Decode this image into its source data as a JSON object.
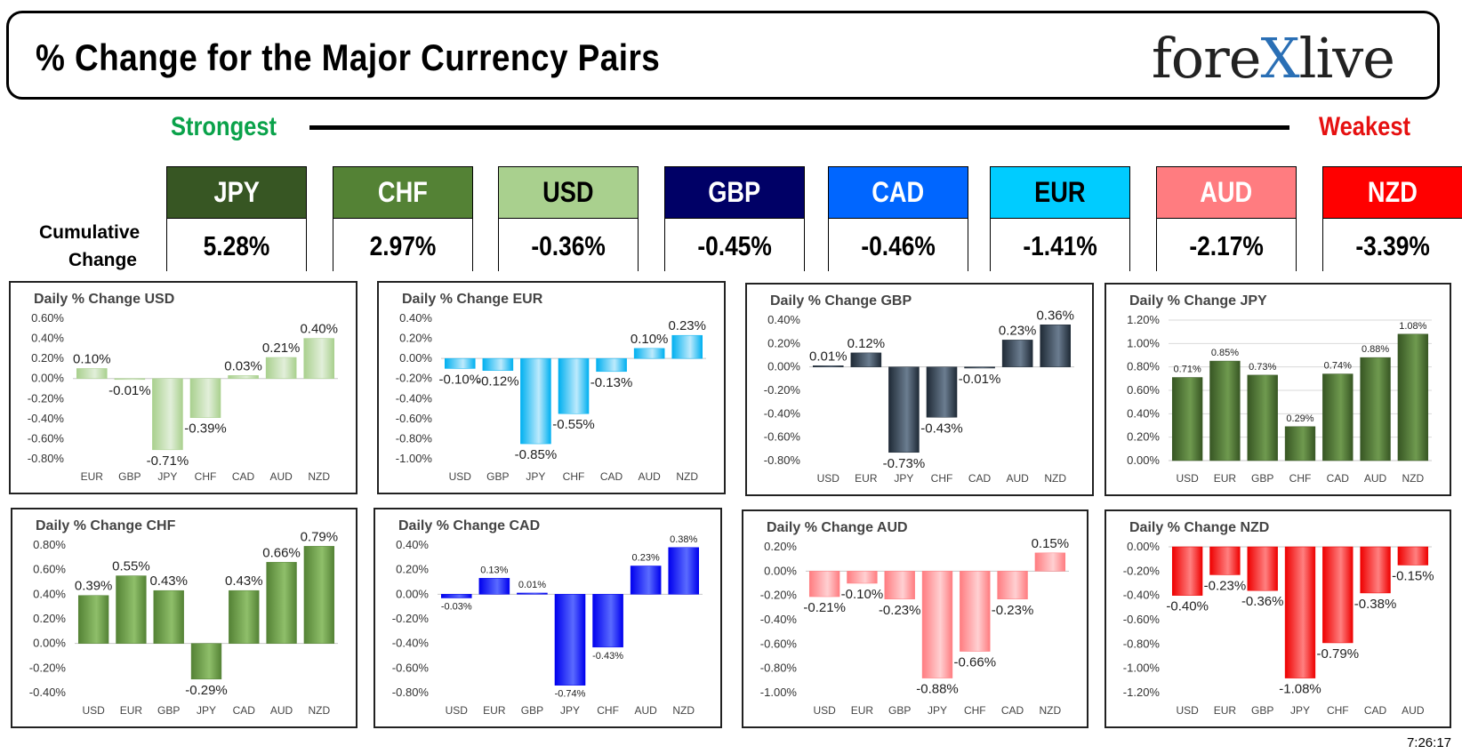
{
  "header": {
    "title": "% Change for the Major Currency Pairs",
    "logo_left": "fore",
    "logo_x": "X",
    "logo_right": "live"
  },
  "strength": {
    "strongest": "Strongest",
    "weakest": "Weakest"
  },
  "cumulative_label_line1": "Cumulative",
  "cumulative_label_line2": "Change",
  "currencies": [
    {
      "name": "JPY",
      "value": "5.28%",
      "color": "#375623",
      "text_color": "#ffffff"
    },
    {
      "name": "CHF",
      "value": "2.97%",
      "color": "#548235",
      "text_color": "#ffffff"
    },
    {
      "name": "USD",
      "value": "-0.36%",
      "color": "#a9d08e",
      "text_color": "#000000"
    },
    {
      "name": "GBP",
      "value": "-0.45%",
      "color": "#000066",
      "text_color": "#ffffff"
    },
    {
      "name": "CAD",
      "value": "-0.46%",
      "color": "#0066ff",
      "text_color": "#ffffff"
    },
    {
      "name": "EUR",
      "value": "-1.41%",
      "color": "#00ccff",
      "text_color": "#000000"
    },
    {
      "name": "AUD",
      "value": "-2.17%",
      "color": "#ff7c80",
      "text_color": "#ffffff"
    },
    {
      "name": "NZD",
      "value": "-3.39%",
      "color": "#ff0000",
      "text_color": "#ffffff"
    }
  ],
  "timestamp": "7:26:17",
  "chart_data": [
    {
      "type": "bar",
      "title": "Daily % Change USD",
      "categories": [
        "EUR",
        "GBP",
        "JPY",
        "CHF",
        "CAD",
        "AUD",
        "NZD"
      ],
      "values": [
        0.1,
        -0.01,
        -0.71,
        -0.39,
        0.03,
        0.21,
        0.4
      ],
      "ylim": [
        -0.8,
        0.6
      ],
      "ticks": [
        0.6,
        0.4,
        0.2,
        0,
        -0.2,
        -0.4,
        -0.6,
        -0.8
      ],
      "decimals": 2,
      "color": "#a9d08e",
      "color_light": "#e2efda",
      "label_size": 15,
      "grid": false
    },
    {
      "type": "bar",
      "title": "Daily % Change EUR",
      "categories": [
        "USD",
        "GBP",
        "JPY",
        "CHF",
        "CAD",
        "AUD",
        "NZD"
      ],
      "values": [
        -0.1,
        -0.12,
        -0.85,
        -0.55,
        -0.13,
        0.1,
        0.23
      ],
      "ylim": [
        -1.0,
        0.4
      ],
      "ticks": [
        0.4,
        0.2,
        0,
        -0.2,
        -0.4,
        -0.6,
        -0.8,
        -1.0
      ],
      "decimals": 2,
      "color": "#00b0f0",
      "color_light": "#bdeafc",
      "label_size": 15,
      "grid": false
    },
    {
      "type": "bar",
      "title": "Daily % Change GBP",
      "categories": [
        "USD",
        "EUR",
        "JPY",
        "CHF",
        "CAD",
        "AUD",
        "NZD"
      ],
      "values": [
        0.01,
        0.12,
        -0.73,
        -0.43,
        -0.01,
        0.23,
        0.36
      ],
      "ylim": [
        -0.8,
        0.4
      ],
      "ticks": [
        0.4,
        0.2,
        0,
        -0.2,
        -0.4,
        -0.6,
        -0.8
      ],
      "decimals": 2,
      "color": "#1f2a36",
      "color_light": "#6b7d90",
      "label_size": 15,
      "grid": false
    },
    {
      "type": "bar",
      "title": "Daily % Change JPY",
      "categories": [
        "USD",
        "EUR",
        "GBP",
        "CHF",
        "CAD",
        "AUD",
        "NZD"
      ],
      "values": [
        0.71,
        0.85,
        0.73,
        0.29,
        0.74,
        0.88,
        1.08
      ],
      "ylim": [
        0,
        1.2
      ],
      "ticks": [
        1.2,
        1.0,
        0.8,
        0.6,
        0.4,
        0.2,
        0
      ],
      "decimals": 2,
      "color": "#375623",
      "color_light": "#6f9a4f",
      "label_size": 11,
      "grid": true
    },
    {
      "type": "bar",
      "title": "Daily % Change CHF",
      "categories": [
        "USD",
        "EUR",
        "GBP",
        "JPY",
        "CAD",
        "AUD",
        "NZD"
      ],
      "values": [
        0.39,
        0.55,
        0.43,
        -0.29,
        0.43,
        0.66,
        0.79
      ],
      "ylim": [
        -0.4,
        0.8
      ],
      "ticks": [
        0.8,
        0.6,
        0.4,
        0.2,
        0,
        -0.2,
        -0.4
      ],
      "decimals": 2,
      "color": "#548235",
      "color_light": "#8fbf6a",
      "label_size": 15,
      "grid": false
    },
    {
      "type": "bar",
      "title": "Daily % Change CAD",
      "categories": [
        "USD",
        "EUR",
        "GBP",
        "JPY",
        "CHF",
        "AUD",
        "NZD"
      ],
      "values": [
        -0.03,
        0.13,
        0.01,
        -0.74,
        -0.43,
        0.23,
        0.38
      ],
      "ylim": [
        -0.8,
        0.4
      ],
      "ticks": [
        0.4,
        0.2,
        0,
        -0.2,
        -0.4,
        -0.6,
        -0.8
      ],
      "decimals": 2,
      "color": "#0000ee",
      "color_light": "#5a6bff",
      "label_size": 11,
      "grid": false
    },
    {
      "type": "bar",
      "title": "Daily % Change AUD",
      "categories": [
        "USD",
        "EUR",
        "GBP",
        "JPY",
        "CHF",
        "CAD",
        "NZD"
      ],
      "values": [
        -0.21,
        -0.1,
        -0.23,
        -0.88,
        -0.66,
        -0.23,
        0.15
      ],
      "ylim": [
        -1.0,
        0.2
      ],
      "ticks": [
        0.2,
        0,
        -0.2,
        -0.4,
        -0.6,
        -0.8,
        -1.0
      ],
      "decimals": 2,
      "color": "#ff7c80",
      "color_light": "#ffd0d2",
      "label_size": 15,
      "grid": false
    },
    {
      "type": "bar",
      "title": "Daily % Change NZD",
      "categories": [
        "USD",
        "EUR",
        "GBP",
        "JPY",
        "CHF",
        "CAD",
        "AUD"
      ],
      "values": [
        -0.4,
        -0.23,
        -0.36,
        -1.08,
        -0.79,
        -0.38,
        -0.15
      ],
      "ylim": [
        -1.2,
        0
      ],
      "ticks": [
        0,
        -0.2,
        -0.4,
        -0.6,
        -0.8,
        -1.0,
        -1.2
      ],
      "decimals": 2,
      "color": "#ee0000",
      "color_light": "#ff8080",
      "label_size": 15,
      "grid": false
    }
  ]
}
